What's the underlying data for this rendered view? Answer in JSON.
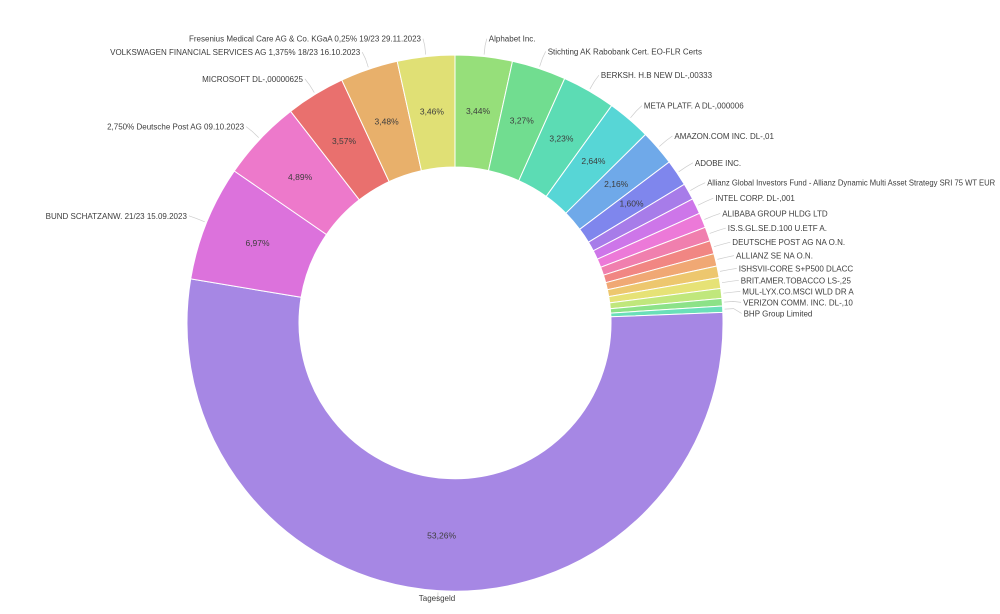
{
  "page": {
    "background_color": "#ffffff",
    "text_color": "#3d3d3d"
  },
  "chart_data": {
    "type": "pie",
    "subtype": "donut",
    "title": "",
    "unit": "%",
    "decimal_separator": ",",
    "labels_position": "outside",
    "percent_labels_position": "inside-ring",
    "legend": "none",
    "start_angle_deg_clockwise_from_top": 0,
    "slices": [
      {
        "label": "Alphabet Inc.",
        "value": 3.44,
        "percent_label": "3,44%",
        "color": "#96df7a"
      },
      {
        "label": "Stichting AK Rabobank Cert. EO-FLR Certs",
        "value": 3.27,
        "percent_label": "3,27%",
        "color": "#71dd90"
      },
      {
        "label": "BERKSH. H.B NEW DL-,00333",
        "value": 3.23,
        "percent_label": "3,23%",
        "color": "#5cdcb4"
      },
      {
        "label": "META PLATF. A DL-,000006",
        "value": 2.64,
        "percent_label": "2,64%",
        "color": "#57d6d6"
      },
      {
        "label": "AMAZON.COM INC. DL-,01",
        "value": 2.16,
        "percent_label": "2,16%",
        "color": "#6fa9e9"
      },
      {
        "label": "ADOBE INC.",
        "value": 1.6,
        "percent_label": "1,60%",
        "color": "#7f86ed"
      },
      {
        "label": "Allianz Global Investors Fund - Allianz Dynamic Multi Asset Strategy SRI 75 WT EUR",
        "value": 1.0,
        "percent_label": null,
        "estimated": true,
        "color": "#a77ce9"
      },
      {
        "label": "INTEL CORP. DL-,001",
        "value": 0.95,
        "percent_label": null,
        "estimated": true,
        "color": "#cd76e9"
      },
      {
        "label": "ALIBABA GROUP HLDG LTD",
        "value": 0.9,
        "percent_label": null,
        "estimated": true,
        "color": "#ec79d8"
      },
      {
        "label": "IS.S.GL.SE.D.100 U.ETF A.",
        "value": 0.85,
        "percent_label": null,
        "estimated": true,
        "color": "#f07fae"
      },
      {
        "label": "DEUTSCHE POST AG NA O.N.",
        "value": 0.8,
        "percent_label": null,
        "estimated": true,
        "color": "#f18683"
      },
      {
        "label": "ALLIANZ SE NA O.N.",
        "value": 0.75,
        "percent_label": null,
        "estimated": true,
        "color": "#f0a874"
      },
      {
        "label": "ISHSVII-CORE S+P500 DLACC",
        "value": 0.7,
        "percent_label": null,
        "estimated": true,
        "color": "#edc76e"
      },
      {
        "label": "BRIT.AMER.TOBACCO LS-,25",
        "value": 0.65,
        "percent_label": null,
        "estimated": true,
        "color": "#e6e276"
      },
      {
        "label": "MUL-LYX.CO.MSCI WLD DR A",
        "value": 0.6,
        "percent_label": null,
        "estimated": true,
        "color": "#c0e77c"
      },
      {
        "label": "VERIZON COMM. INC. DL-,10",
        "value": 0.45,
        "percent_label": null,
        "estimated": true,
        "color": "#8ce288"
      },
      {
        "label": "BHP Group Limited",
        "value": 0.38,
        "percent_label": null,
        "estimated": true,
        "color": "#6adfb9"
      },
      {
        "label": "Tagesgeld",
        "value": 53.26,
        "percent_label": "53,26%",
        "color": "#a687e4"
      },
      {
        "label": "BUND SCHATZANW. 21/23 15.09.2023",
        "value": 6.97,
        "percent_label": "6,97%",
        "color": "#dc72dc"
      },
      {
        "label": "2,750% Deutsche Post AG 09.10.2023",
        "value": 4.89,
        "percent_label": "4,89%",
        "color": "#ed79cb"
      },
      {
        "label": "MICROSOFT DL-,00000625",
        "value": 3.57,
        "percent_label": "3,57%",
        "color": "#e9706e"
      },
      {
        "label": "VOLKSWAGEN FINANCIAL SERVICES AG 1,375% 18/23 16.10.2023",
        "value": 3.48,
        "percent_label": "3,48%",
        "color": "#e8b06b"
      },
      {
        "label": "Fresenius Medical Care AG & Co. KGaA 0,25% 19/23 29.11.2023",
        "value": 3.46,
        "percent_label": "3,46%",
        "color": "#e0e075"
      }
    ]
  }
}
